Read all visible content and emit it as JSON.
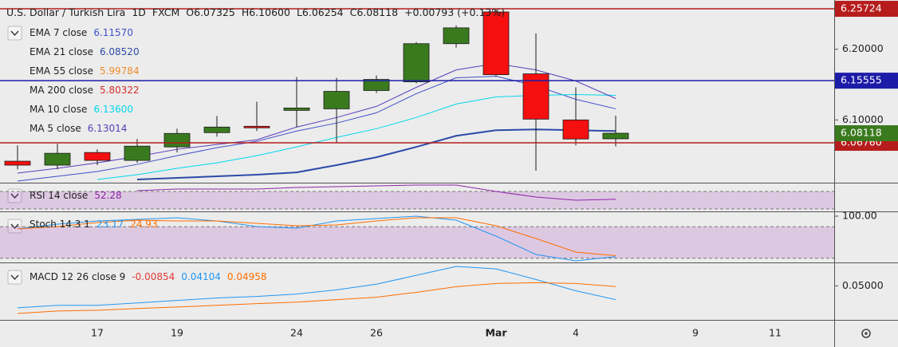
{
  "chart_data": [
    {
      "type": "candlestick",
      "title": "U.S. Dollar / Turkish Lira",
      "interval": "1D",
      "source": "FXCM",
      "header_values": [
        {
          "key": "O",
          "value": "6.07325"
        },
        {
          "key": "H",
          "value": "6.10600"
        },
        {
          "key": "L",
          "value": "6.06254"
        },
        {
          "key": "C",
          "value": "6.08118"
        }
      ],
      "change": "+0.00793 (+0.13%)",
      "categories": [
        null,
        null,
        "17",
        null,
        "19",
        null,
        null,
        "24",
        null,
        "26",
        null,
        null,
        "Mar",
        null,
        "4",
        null,
        null,
        "9",
        null,
        "11"
      ],
      "open": [
        6.0416,
        6.036,
        6.0539,
        6.0427,
        6.0618,
        6.082,
        6.091,
        6.1135,
        6.1157,
        6.1416,
        6.1539,
        6.2079,
        6.2528,
        6.1652,
        6.1,
        6.07325,
        null,
        null,
        null,
        null
      ],
      "high": [
        6.064,
        6.0663,
        6.0584,
        6.073,
        6.0876,
        6.1056,
        6.1258,
        6.1607,
        6.1596,
        6.1629,
        6.2101,
        6.2337,
        6.2572,
        6.2225,
        6.1461,
        6.106,
        null,
        null,
        null,
        null
      ],
      "low": [
        6.0303,
        6.0303,
        6.036,
        6.0393,
        6.0539,
        6.0764,
        6.0843,
        6.0899,
        6.0674,
        6.1382,
        6.1517,
        6.2022,
        6.1618,
        6.0281,
        6.064,
        6.06254,
        null,
        null,
        null,
        null
      ],
      "close": [
        6.036,
        6.0528,
        6.0427,
        6.0629,
        6.0809,
        6.0899,
        6.0888,
        6.1169,
        6.1404,
        6.1573,
        6.2079,
        6.2303,
        6.164,
        6.1011,
        6.073,
        6.08118,
        null,
        null,
        null,
        null
      ],
      "up_color": "#3a7a1f",
      "down_color": "#f50f0f",
      "ylim": [
        6.0112,
        6.2697
      ],
      "yticks": [
        {
          "value": 6.2,
          "label": "6.20000"
        },
        {
          "value": 6.1,
          "label": "6.10000"
        }
      ],
      "price_lines": [
        {
          "value": 6.25724,
          "color": "#b71c1c"
        },
        {
          "value": 6.15555,
          "color": "#1c1ca8"
        },
        {
          "value": 6.0676,
          "label": "6.06760",
          "color": "#b71c1c"
        }
      ],
      "last_price_color": "#3a7a1f",
      "series": [
        {
          "name": "EMA 7 close",
          "legend_value": "6.11570",
          "color": "#3f51c8",
          "values": [
            6.0135,
            6.0202,
            6.027,
            6.0371,
            6.0494,
            6.0607,
            6.0697,
            6.0843,
            6.0955,
            6.1101,
            6.1371,
            6.1596,
            6.1618,
            6.1483,
            6.1292,
            6.1157,
            null,
            null,
            null,
            null
          ]
        },
        {
          "name": "EMA 21 close",
          "legend_value": "6.08520",
          "color": "#2c4aa8",
          "width": 2,
          "values": [
            null,
            null,
            null,
            6.0157,
            6.018,
            6.0202,
            6.0225,
            6.0258,
            6.036,
            6.0472,
            6.0618,
            6.0775,
            6.0854,
            6.0865,
            6.0854,
            6.0843,
            null,
            null,
            null,
            null
          ]
        },
        {
          "name": "EMA 55 close",
          "legend_value": "5.99784",
          "color": "#f08c2a"
        },
        {
          "name": "MA 200 close",
          "legend_value": "5.80322",
          "color": "#d32f2f"
        },
        {
          "name": "MA 10 close",
          "legend_value": "6.13600",
          "color": "#00d8ec",
          "values": [
            null,
            null,
            6.0157,
            6.0225,
            6.0315,
            6.0393,
            6.0494,
            6.0618,
            6.0753,
            6.0876,
            6.1034,
            6.1225,
            6.1326,
            6.1348,
            6.136,
            6.1348,
            null,
            null,
            null,
            null
          ]
        },
        {
          "name": "MA 5 close",
          "legend_value": "6.13014",
          "color": "#5a3cb8",
          "values": [
            6.0247,
            6.0315,
            6.0393,
            6.0483,
            6.0584,
            6.0652,
            6.0719,
            6.0899,
            6.1034,
            6.1191,
            6.1461,
            6.1708,
            6.1798,
            6.1708,
            6.1551,
            6.1303,
            null,
            null,
            null,
            null
          ]
        }
      ]
    },
    {
      "type": "line",
      "study": "RSI 14 close",
      "ylim": [
        24.5,
        88.2
      ],
      "band": [
        30,
        70
      ],
      "band_color": "#9c27b0",
      "series": [
        {
          "color": "#8e24aa",
          "values": [
            null,
            null,
            null,
            71.8,
            75.5,
            75.5,
            75.5,
            79,
            81,
            82.7,
            84.5,
            84.5,
            70,
            57.3,
            50,
            52.28,
            null,
            null,
            null,
            null
          ]
        }
      ]
    },
    {
      "type": "line",
      "study": "Stoch 14 3 1",
      "ylim": [
        12.1,
        107.6
      ],
      "yticks": [
        {
          "value": 100,
          "label": "100.00"
        }
      ],
      "band": [
        20,
        80
      ],
      "band_color": "#9c27b0",
      "series": [
        {
          "color": "#2196f3",
          "values": [
            75.8,
            84.8,
            90.9,
            93.9,
            97,
            90.9,
            80.3,
            77.3,
            90.9,
            95.5,
            100,
            92.4,
            62.1,
            27.3,
            15.2,
            23.17,
            null,
            null,
            null,
            null
          ]
        },
        {
          "color": "#ff6d00",
          "values": [
            75.8,
            80.3,
            87.9,
            92.4,
            90.9,
            90.9,
            86.4,
            81.8,
            83.3,
            90.9,
            97,
            97,
            81.8,
            57.6,
            31.8,
            24.93,
            null,
            null,
            null,
            null
          ]
        }
      ]
    },
    {
      "type": "line",
      "study": "MACD 12 26 close 9",
      "histogram": -0.00854,
      "ylim": [
        0.0278,
        0.0648
      ],
      "yticks": [
        {
          "value": 0.05,
          "label": "0.05000"
        }
      ],
      "series": [
        {
          "color": "#2196f3",
          "values": [
            0.0357,
            0.0373,
            0.0373,
            0.0389,
            0.0405,
            0.0421,
            0.0431,
            0.0447,
            0.0474,
            0.0511,
            0.0569,
            0.0627,
            0.0611,
            0.0542,
            0.0468,
            0.04104,
            null,
            null,
            null,
            null
          ]
        },
        {
          "color": "#ff6d00",
          "values": [
            0.032,
            0.0336,
            0.0341,
            0.0352,
            0.0362,
            0.0373,
            0.0384,
            0.0394,
            0.041,
            0.0426,
            0.0458,
            0.0495,
            0.0516,
            0.0521,
            0.0516,
            0.04958,
            null,
            null,
            null,
            null
          ]
        }
      ]
    }
  ]
}
